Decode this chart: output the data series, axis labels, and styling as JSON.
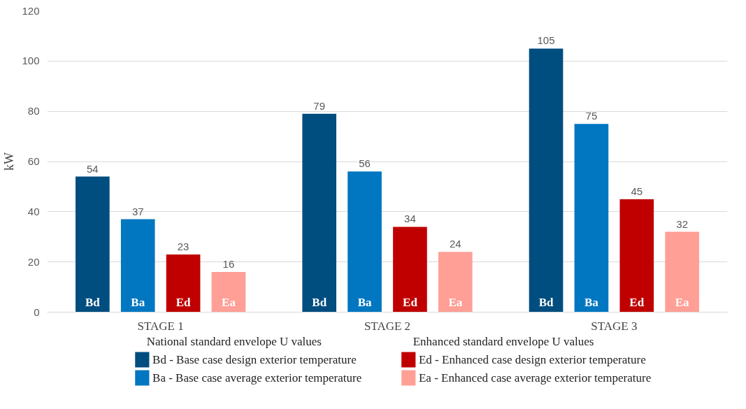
{
  "chart_data": {
    "type": "bar",
    "ylabel": "kW",
    "categories": [
      "STAGE 1",
      "STAGE 2",
      "STAGE 3"
    ],
    "series": [
      {
        "name": "Bd - Base case design exterior temperature",
        "color": "#004d7f",
        "values": [
          54,
          79,
          105
        ]
      },
      {
        "name": "Ba - Base case average exterior temperature",
        "color": "#0077c0",
        "values": [
          37,
          56,
          75
        ]
      },
      {
        "name": "Ed - Enhanced case design exterior temperature",
        "color": "#c00000",
        "values": [
          23,
          34,
          45
        ]
      },
      {
        "name": "Ea - Enhanced case average exterior temperature",
        "color": "#ff9f96",
        "values": [
          16,
          24,
          32
        ]
      }
    ],
    "ylim": [
      0,
      120
    ],
    "yticks": [
      0,
      20,
      40,
      60,
      80,
      100,
      120
    ],
    "grid": "y",
    "data_labels": true,
    "legend": "bottom",
    "annotations": [
      "National standard envelope U values",
      "Enhanced standard envelope U values",
      "Bd",
      "Ba",
      "Ed",
      "Ea",
      "Bd",
      "Ba",
      "Ed",
      "Ea",
      "Bd",
      "Ba",
      "Ed",
      "Ea"
    ]
  }
}
